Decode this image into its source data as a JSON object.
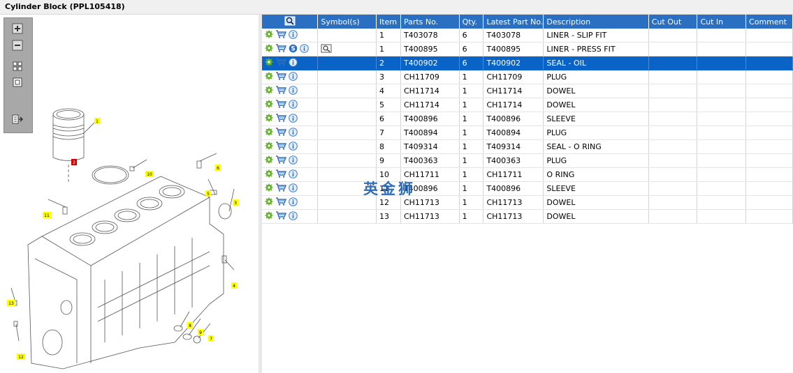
{
  "title": "Cylinder Block (PPL105418)",
  "icons": {
    "settings": "gear-icon",
    "cart": "cart-icon",
    "info": "info-icon",
    "service": "service-s-icon",
    "symbol": "view-symbol-icon",
    "search": "magnifier-icon",
    "zoom_in": "zoom-in-icon",
    "zoom_out": "zoom-out-icon",
    "fit": "fit-view-icon",
    "actual": "actual-size-icon",
    "export": "export-icon"
  },
  "colors": {
    "header": "#2a6fc1",
    "selected_row": "#0a64c8",
    "callout_fill": "#ffff00",
    "callout_red": "#d40000",
    "watermark": "#1e63b5"
  },
  "columns": {
    "symbols": "Symbol(s)",
    "item": "Item",
    "parts_no": "Parts No.",
    "qty": "Qty.",
    "latest_part_no": "Latest Part No.",
    "description": "Description",
    "cut_out": "Cut Out",
    "cut_in": "Cut In",
    "comment": "Comment"
  },
  "rows": [
    {
      "item": "1",
      "parts_no": "T403078",
      "qty": "6",
      "latest": "T403078",
      "desc": "LINER - SLIP FIT",
      "cut_out": "",
      "cut_in": "",
      "comment": ""
    },
    {
      "item": "1",
      "parts_no": "T400895",
      "qty": "6",
      "latest": "T400895",
      "desc": "LINER - PRESS FIT",
      "cut_out": "",
      "cut_in": "",
      "comment": ""
    },
    {
      "item": "2",
      "parts_no": "T400902",
      "qty": "6",
      "latest": "T400902",
      "desc": "SEAL - OIL",
      "cut_out": "",
      "cut_in": "",
      "comment": ""
    },
    {
      "item": "3",
      "parts_no": "CH11709",
      "qty": "1",
      "latest": "CH11709",
      "desc": "PLUG",
      "cut_out": "",
      "cut_in": "",
      "comment": ""
    },
    {
      "item": "4",
      "parts_no": "CH11714",
      "qty": "1",
      "latest": "CH11714",
      "desc": "DOWEL",
      "cut_out": "",
      "cut_in": "",
      "comment": ""
    },
    {
      "item": "5",
      "parts_no": "CH11714",
      "qty": "1",
      "latest": "CH11714",
      "desc": "DOWEL",
      "cut_out": "",
      "cut_in": "",
      "comment": ""
    },
    {
      "item": "6",
      "parts_no": "T400896",
      "qty": "1",
      "latest": "T400896",
      "desc": "SLEEVE",
      "cut_out": "",
      "cut_in": "",
      "comment": ""
    },
    {
      "item": "7",
      "parts_no": "T400894",
      "qty": "1",
      "latest": "T400894",
      "desc": "PLUG",
      "cut_out": "",
      "cut_in": "",
      "comment": ""
    },
    {
      "item": "8",
      "parts_no": "T409314",
      "qty": "1",
      "latest": "T409314",
      "desc": "SEAL - O RING",
      "cut_out": "",
      "cut_in": "",
      "comment": ""
    },
    {
      "item": "9",
      "parts_no": "T400363",
      "qty": "1",
      "latest": "T400363",
      "desc": "PLUG",
      "cut_out": "",
      "cut_in": "",
      "comment": ""
    },
    {
      "item": "10",
      "parts_no": "CH11711",
      "qty": "1",
      "latest": "CH11711",
      "desc": "O RING",
      "cut_out": "",
      "cut_in": "",
      "comment": ""
    },
    {
      "item": "11",
      "parts_no": "T400896",
      "qty": "1",
      "latest": "T400896",
      "desc": "SLEEVE",
      "cut_out": "",
      "cut_in": "",
      "comment": ""
    },
    {
      "item": "12",
      "parts_no": "CH11713",
      "qty": "1",
      "latest": "CH11713",
      "desc": "DOWEL",
      "cut_out": "",
      "cut_in": "",
      "comment": ""
    },
    {
      "item": "13",
      "parts_no": "CH11713",
      "qty": "1",
      "latest": "CH11713",
      "desc": "DOWEL",
      "cut_out": "",
      "cut_in": "",
      "comment": ""
    }
  ],
  "selected_row": 2,
  "service_row": 1,
  "callouts": [
    "1",
    "2",
    "3",
    "4",
    "5",
    "6",
    "7",
    "8",
    "9",
    "10",
    "11",
    "12",
    "13"
  ],
  "watermark": "英金狮"
}
